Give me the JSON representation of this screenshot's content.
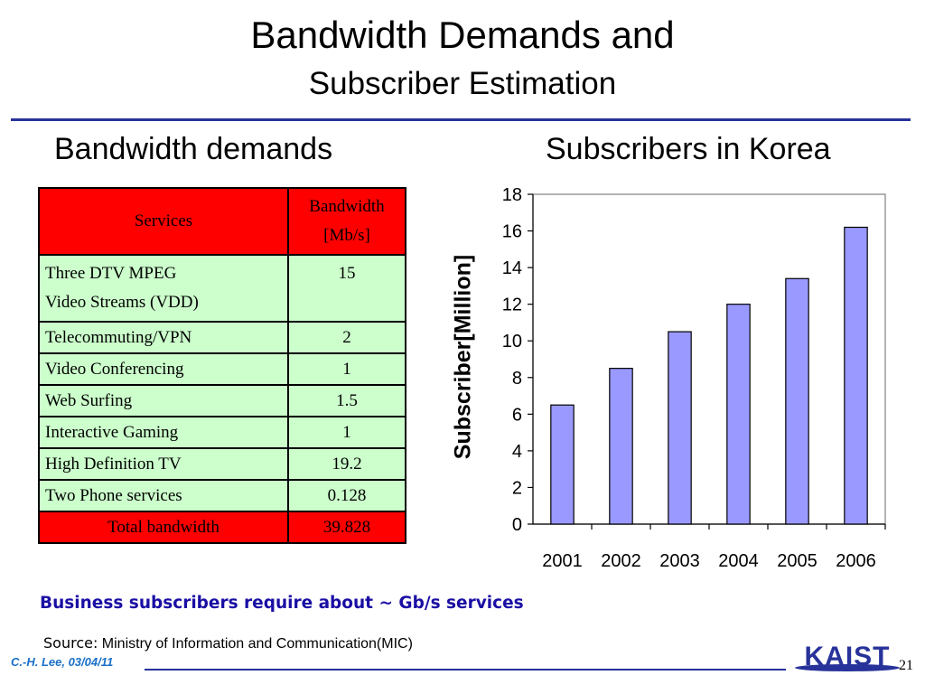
{
  "slide": {
    "title_line1": "Bandwidth Demands and",
    "title_line2": "Subscriber Estimation",
    "left_heading": "Bandwidth demands",
    "right_heading": "Subscribers in Korea",
    "note": "Business subscribers require about ~ Gb/s services",
    "source_label": "Source:",
    "source_text": "Ministry of Information and Communication(MIC)",
    "author": "C.-H. Lee, 03/04/11",
    "logo_text": "KAIST",
    "page_number": "21"
  },
  "table": {
    "header": {
      "services": "Services",
      "bandwidth_line1": "Bandwidth",
      "bandwidth_line2": "[Mb/s]"
    },
    "rows": [
      {
        "service_line1": "Three DTV MPEG",
        "service_line2": "Video Streams (VDD)",
        "bandwidth": "15"
      },
      {
        "service": "Telecommuting/VPN",
        "bandwidth": "2"
      },
      {
        "service": "Video Conferencing",
        "bandwidth": "1"
      },
      {
        "service": "Web Surfing",
        "bandwidth": "1.5"
      },
      {
        "service": "Interactive Gaming",
        "bandwidth": "1"
      },
      {
        "service": "High Definition TV",
        "bandwidth": "19.2"
      },
      {
        "service": "Two Phone services",
        "bandwidth": "0.128"
      }
    ],
    "total": {
      "label": "Total bandwidth",
      "value": "39.828"
    },
    "colors": {
      "header_bg": "#ff0000",
      "row_bg": "#ccffcc",
      "total_bg": "#ff0000"
    }
  },
  "chart_data": {
    "type": "bar",
    "categories": [
      "2001",
      "2002",
      "2003",
      "2004",
      "2005",
      "2006"
    ],
    "values": [
      6.5,
      8.5,
      10.5,
      12.0,
      13.4,
      16.2
    ],
    "title": "",
    "xlabel": "",
    "ylabel": "Subscriber[Million]",
    "ylim": [
      0,
      18
    ],
    "yticks": [
      "0",
      "2",
      "4",
      "6",
      "8",
      "10",
      "12",
      "14",
      "16",
      "18"
    ],
    "grid": false,
    "legend": "none",
    "colors": {
      "bar": "#9999ff",
      "plot_bg": "#ffffff"
    }
  }
}
